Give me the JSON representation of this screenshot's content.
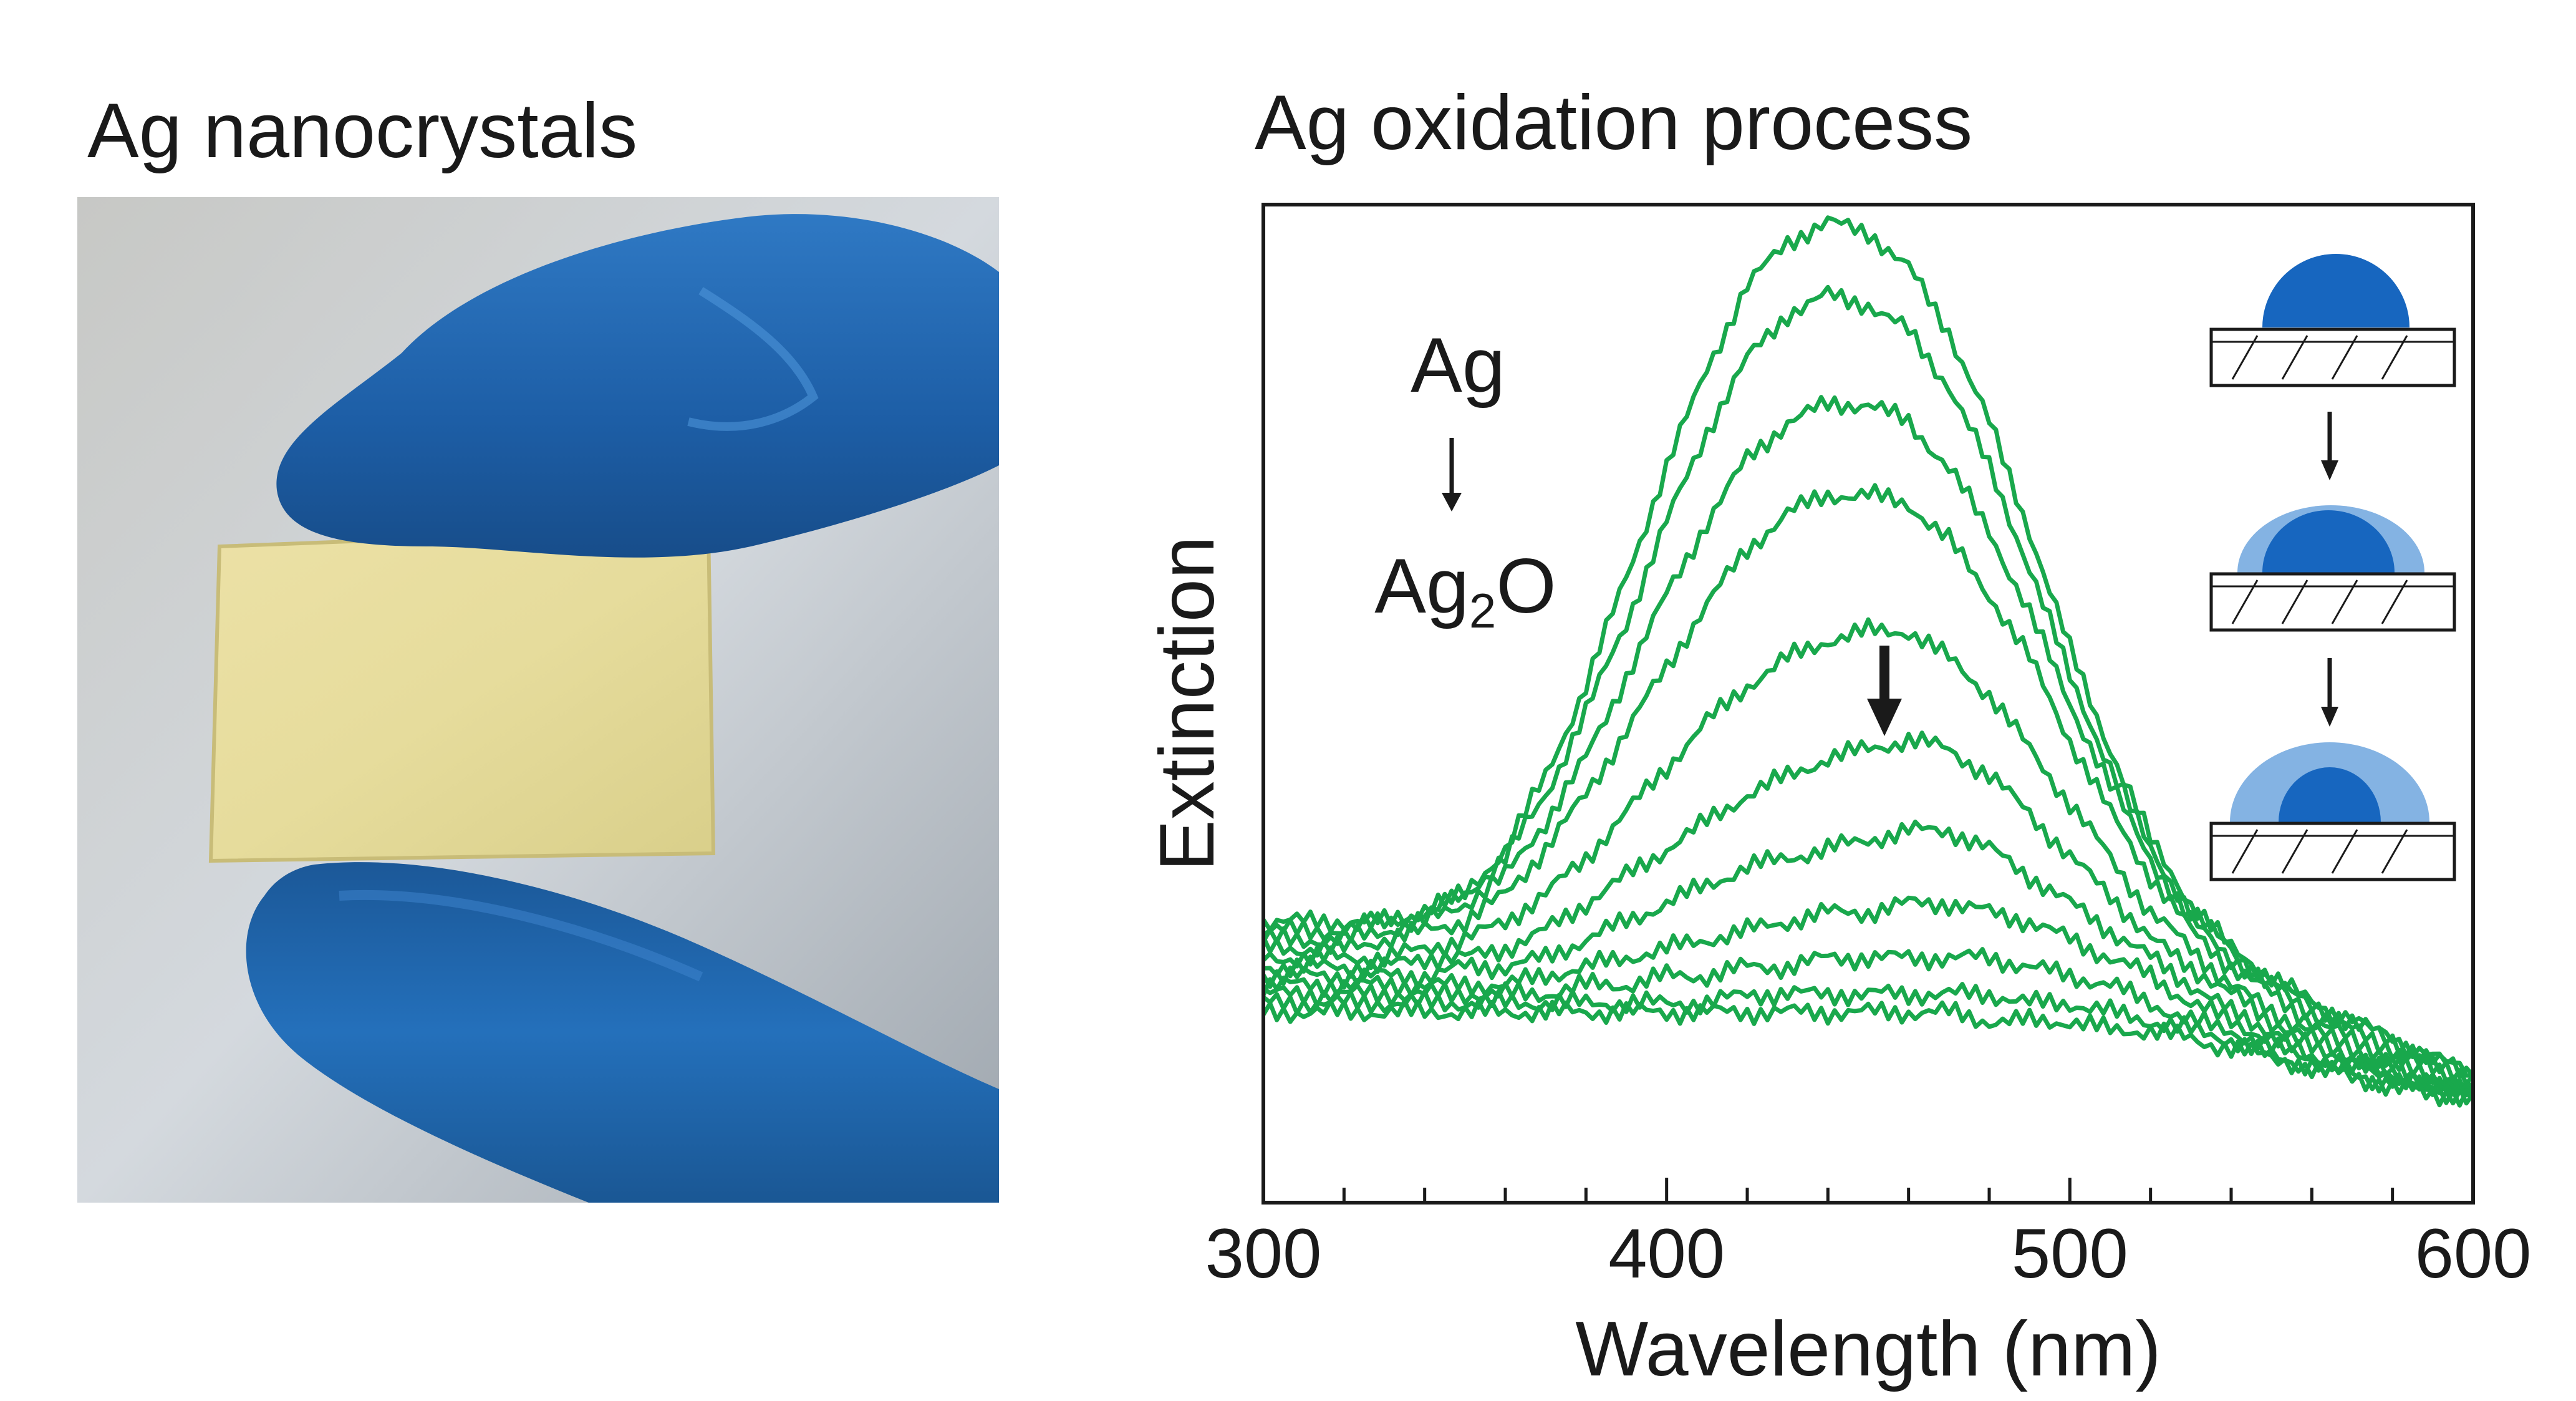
{
  "figure": {
    "left_panel": {
      "title": "Ag nanocrystals",
      "photo_colors": {
        "background": "#c9d0d8",
        "glove": "#1f5fa8",
        "film": "#e6dc9c"
      }
    },
    "right_panel": {
      "title": "Ag oxidation process"
    }
  },
  "chart_data": {
    "type": "line",
    "title": "Ag oxidation process",
    "xlabel": "Wavelength (nm)",
    "ylabel": "Extinction",
    "xlim": [
      300,
      600
    ],
    "ylim": [
      0,
      1.1
    ],
    "x_ticks": [
      300,
      400,
      500,
      600
    ],
    "x_minor_step": 20,
    "y_tick_labels": false,
    "grid": false,
    "legend": "none",
    "line_color": "#19a84c",
    "annotations": {
      "top": "Ag",
      "bottom_base": "Ag",
      "bottom_sub": "2",
      "bottom_tail": "O"
    },
    "inset": {
      "particle_color": "#1766bf",
      "shell_color": "#84b3e3",
      "steps": 3
    },
    "x": [
      300,
      310,
      320,
      330,
      340,
      350,
      360,
      370,
      380,
      390,
      400,
      410,
      420,
      430,
      440,
      450,
      460,
      470,
      480,
      490,
      500,
      510,
      520,
      530,
      540,
      550,
      560,
      570,
      580,
      590,
      600
    ],
    "series": [
      {
        "values": [
          0.31,
          0.31,
          0.31,
          0.31,
          0.32,
          0.34,
          0.39,
          0.47,
          0.57,
          0.69,
          0.81,
          0.92,
          1.01,
          1.06,
          1.08,
          1.07,
          1.03,
          0.96,
          0.86,
          0.74,
          0.61,
          0.5,
          0.4,
          0.33,
          0.28,
          0.25,
          0.22,
          0.2,
          0.18,
          0.16,
          0.14
        ]
      },
      {
        "values": [
          0.3,
          0.3,
          0.3,
          0.31,
          0.32,
          0.34,
          0.38,
          0.45,
          0.54,
          0.64,
          0.75,
          0.85,
          0.93,
          0.98,
          1.0,
          0.99,
          0.96,
          0.9,
          0.81,
          0.7,
          0.58,
          0.48,
          0.39,
          0.32,
          0.28,
          0.24,
          0.22,
          0.2,
          0.18,
          0.16,
          0.14
        ]
      },
      {
        "values": [
          0.29,
          0.29,
          0.29,
          0.3,
          0.31,
          0.33,
          0.36,
          0.42,
          0.49,
          0.58,
          0.67,
          0.75,
          0.82,
          0.86,
          0.88,
          0.88,
          0.86,
          0.81,
          0.74,
          0.65,
          0.55,
          0.46,
          0.38,
          0.31,
          0.27,
          0.24,
          0.21,
          0.19,
          0.17,
          0.15,
          0.14
        ]
      },
      {
        "values": [
          0.28,
          0.28,
          0.28,
          0.29,
          0.3,
          0.31,
          0.34,
          0.39,
          0.45,
          0.52,
          0.59,
          0.66,
          0.72,
          0.76,
          0.78,
          0.78,
          0.77,
          0.73,
          0.67,
          0.6,
          0.51,
          0.43,
          0.36,
          0.3,
          0.26,
          0.23,
          0.2,
          0.18,
          0.16,
          0.15,
          0.13
        ]
      },
      {
        "values": [
          0.27,
          0.27,
          0.27,
          0.27,
          0.28,
          0.29,
          0.31,
          0.34,
          0.38,
          0.43,
          0.48,
          0.53,
          0.57,
          0.6,
          0.62,
          0.63,
          0.63,
          0.6,
          0.56,
          0.5,
          0.44,
          0.38,
          0.32,
          0.28,
          0.24,
          0.21,
          0.19,
          0.17,
          0.15,
          0.14,
          0.12
        ]
      },
      {
        "values": [
          0.26,
          0.26,
          0.26,
          0.26,
          0.27,
          0.27,
          0.28,
          0.3,
          0.33,
          0.36,
          0.39,
          0.42,
          0.45,
          0.47,
          0.49,
          0.5,
          0.51,
          0.5,
          0.47,
          0.43,
          0.38,
          0.34,
          0.29,
          0.26,
          0.23,
          0.2,
          0.18,
          0.16,
          0.15,
          0.13,
          0.12
        ]
      },
      {
        "values": [
          0.25,
          0.25,
          0.25,
          0.25,
          0.25,
          0.26,
          0.26,
          0.27,
          0.29,
          0.31,
          0.33,
          0.35,
          0.37,
          0.38,
          0.39,
          0.4,
          0.41,
          0.41,
          0.39,
          0.36,
          0.33,
          0.3,
          0.27,
          0.24,
          0.21,
          0.19,
          0.17,
          0.16,
          0.14,
          0.13,
          0.12
        ]
      },
      {
        "values": [
          0.24,
          0.24,
          0.24,
          0.24,
          0.24,
          0.24,
          0.24,
          0.25,
          0.26,
          0.27,
          0.28,
          0.29,
          0.3,
          0.31,
          0.32,
          0.32,
          0.33,
          0.33,
          0.32,
          0.31,
          0.29,
          0.27,
          0.25,
          0.22,
          0.2,
          0.18,
          0.16,
          0.15,
          0.14,
          0.13,
          0.12
        ]
      },
      {
        "values": [
          0.23,
          0.23,
          0.23,
          0.23,
          0.23,
          0.23,
          0.23,
          0.23,
          0.24,
          0.24,
          0.25,
          0.25,
          0.26,
          0.26,
          0.27,
          0.27,
          0.27,
          0.27,
          0.27,
          0.26,
          0.25,
          0.24,
          0.22,
          0.2,
          0.19,
          0.17,
          0.16,
          0.15,
          0.14,
          0.13,
          0.12
        ]
      },
      {
        "values": [
          0.22,
          0.22,
          0.22,
          0.22,
          0.22,
          0.22,
          0.22,
          0.22,
          0.22,
          0.22,
          0.22,
          0.22,
          0.23,
          0.23,
          0.23,
          0.23,
          0.23,
          0.23,
          0.23,
          0.22,
          0.22,
          0.21,
          0.2,
          0.19,
          0.18,
          0.16,
          0.15,
          0.14,
          0.13,
          0.12,
          0.12
        ]
      },
      {
        "values": [
          0.21,
          0.21,
          0.21,
          0.21,
          0.21,
          0.21,
          0.21,
          0.21,
          0.21,
          0.21,
          0.21,
          0.21,
          0.21,
          0.21,
          0.21,
          0.21,
          0.21,
          0.21,
          0.2,
          0.2,
          0.2,
          0.19,
          0.19,
          0.18,
          0.17,
          0.16,
          0.15,
          0.14,
          0.13,
          0.12,
          0.12
        ]
      }
    ]
  }
}
